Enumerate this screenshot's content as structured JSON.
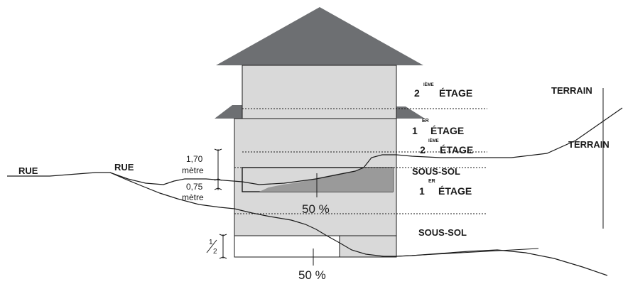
{
  "labels": {
    "rue_left": "RUE",
    "rue_center": "RUE",
    "terrain_top": "TERRAIN",
    "terrain_right": "TERRAIN",
    "upper_floor2_num": "2",
    "upper_floor2_sup": "IÈME",
    "upper_floor2_word": "ÉTAGE",
    "upper_floor1_num": "1",
    "upper_floor1_sup": "ER",
    "upper_floor1_word": "ÉTAGE",
    "upper_basement": "SOUS-SOL",
    "lower_floor2_num": "2",
    "lower_floor2_sup": "IÈME",
    "lower_floor2_word": "ÉTAGE",
    "lower_floor1_num": "1",
    "lower_floor1_sup": "ER",
    "lower_floor1_word": "ÉTAGE",
    "lower_basement": "SOUS-SOL",
    "dim_170_value": "1,70",
    "dim_170_unit": "mètre",
    "dim_075_value": "0,75",
    "dim_075_unit": "mètre",
    "dim_half_num": "1",
    "dim_half_den": "2",
    "pct_upper": "50 %",
    "pct_lower": "50 %"
  },
  "colors": {
    "roof": "#6d6f72",
    "wall": "#d9d9d9",
    "buried": "#9a9a9a",
    "line": "#1a1a1a"
  }
}
